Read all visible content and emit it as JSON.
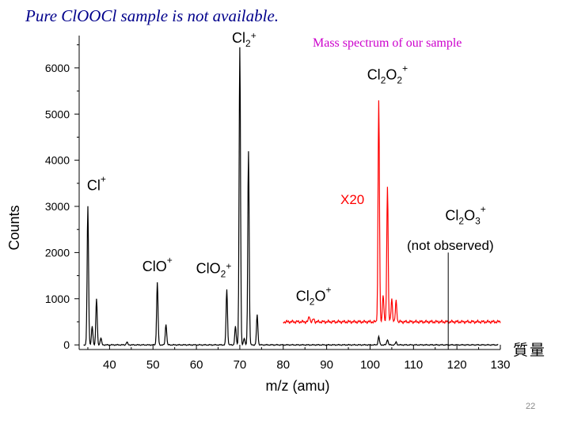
{
  "slide": {
    "title": "Pure ClOOCl sample is not available.",
    "subtitle": "Mass spectrum of our sample",
    "side_note": "質量",
    "page_number": "22"
  },
  "chart_data": {
    "type": "line",
    "xlabel": "m/z (amu)",
    "ylabel": "Counts",
    "xlim": [
      33,
      130
    ],
    "ylim": [
      -100,
      6700
    ],
    "x_ticks": [
      40,
      50,
      60,
      70,
      80,
      90,
      100,
      110,
      120,
      130
    ],
    "y_ticks": [
      0,
      1000,
      2000,
      3000,
      4000,
      5000,
      6000
    ],
    "series": [
      {
        "color": "#000000",
        "peaks": [
          [
            35,
            3000
          ],
          [
            36,
            400
          ],
          [
            37,
            1000
          ],
          [
            38,
            150
          ],
          [
            44,
            60
          ],
          [
            51,
            1350
          ],
          [
            53,
            450
          ],
          [
            67,
            1200
          ],
          [
            69,
            400
          ],
          [
            70,
            6450
          ],
          [
            71,
            150
          ],
          [
            72,
            4200
          ],
          [
            74,
            650
          ],
          [
            102,
            180
          ],
          [
            104,
            120
          ],
          [
            106,
            60
          ]
        ]
      },
      {
        "name": "X20",
        "color": "#ff0000",
        "x_start": 80,
        "x_end": 130,
        "baseline": 500,
        "peaks": [
          [
            86,
            620
          ],
          [
            87,
            560
          ],
          [
            102,
            5300
          ],
          [
            103,
            1100
          ],
          [
            104,
            3450
          ],
          [
            105,
            1000
          ],
          [
            106,
            950
          ]
        ]
      }
    ],
    "annotations": [
      {
        "base": "Cl",
        "sub": "2",
        "rest": "",
        "sup": "+",
        "x": 71,
        "y": 6550,
        "color": "#000000"
      },
      {
        "base": "Cl",
        "sub": "2",
        "rest": "O",
        "sup": "+",
        "x": 104,
        "y": 5750,
        "sub2": "2",
        "color": "#000000"
      },
      {
        "base": "Cl",
        "sub": "",
        "rest": "",
        "sup": "+",
        "x": 37,
        "y": 3350,
        "color": "#000000"
      },
      {
        "base": "ClO",
        "sub": "",
        "rest": "",
        "sup": "+",
        "x": 51,
        "y": 1600,
        "color": "#000000"
      },
      {
        "base": "ClO",
        "sub": "2",
        "rest": "",
        "sup": "+",
        "x": 64,
        "y": 1550,
        "color": "#000000"
      },
      {
        "base": "Cl",
        "sub": "2",
        "rest": "O",
        "sup": "+",
        "x": 87,
        "y": 950,
        "color": "#000000"
      },
      {
        "base": "Cl",
        "sub": "2",
        "rest": "O",
        "sup": "+",
        "x": 122,
        "y": 2700,
        "sub2": "3",
        "color": "#000000"
      }
    ],
    "labels": {
      "x20": "X20",
      "not_observed": "(not observed)"
    },
    "marker_line_x": 118
  }
}
